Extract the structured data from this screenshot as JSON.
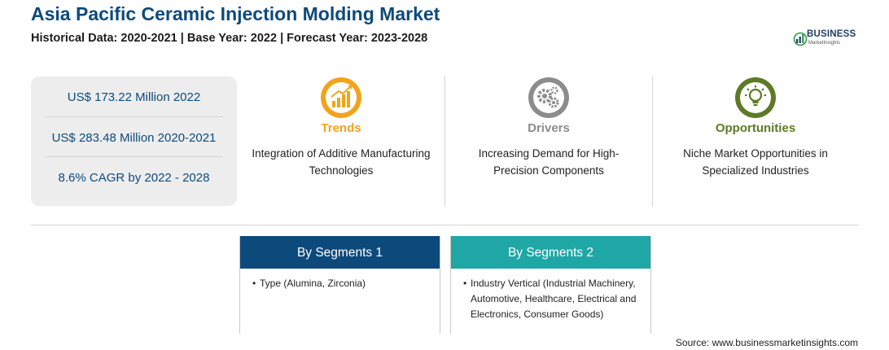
{
  "header": {
    "title": "Asia Pacific Ceramic Injection Molding Market",
    "subtitle": "Historical Data: 2020-2021 | Base Year: 2022 | Forecast Year: 2023-2028"
  },
  "logo": {
    "brand": "BUSINESS",
    "tagline": "MarketInsights",
    "accent_color": "#2e9a46"
  },
  "stats": [
    "US$ 173.22 Million 2022",
    "US$ 283.48 Million 2020-2021",
    "8.6% CAGR by 2022 - 2028"
  ],
  "cards": [
    {
      "title": "Trends",
      "text": "Integration of Additive Manufacturing Technologies",
      "color": "#f1a41b",
      "icon": "growth-chart-icon"
    },
    {
      "title": "Drivers",
      "text": "Increasing Demand for High-Precision Components",
      "color": "#8c8c8c",
      "icon": "gears-icon"
    },
    {
      "title": "Opportunities",
      "text": "Niche Market Opportunities in Specialized Industries",
      "color": "#5d7a25",
      "icon": "lightbulb-icon"
    }
  ],
  "segments": [
    {
      "title": "By Segments 1",
      "color": "#0d4a7c",
      "items": [
        "Type (Alumina, Zirconia)"
      ]
    },
    {
      "title": "By Segments 2",
      "color": "#1fa7a5",
      "items": [
        "Industry Vertical (Industrial Machinery, Automotive, Healthcare, Electrical and Electronics, Consumer Goods)"
      ]
    }
  ],
  "source": "Source: www.businessmarketinsights.com"
}
